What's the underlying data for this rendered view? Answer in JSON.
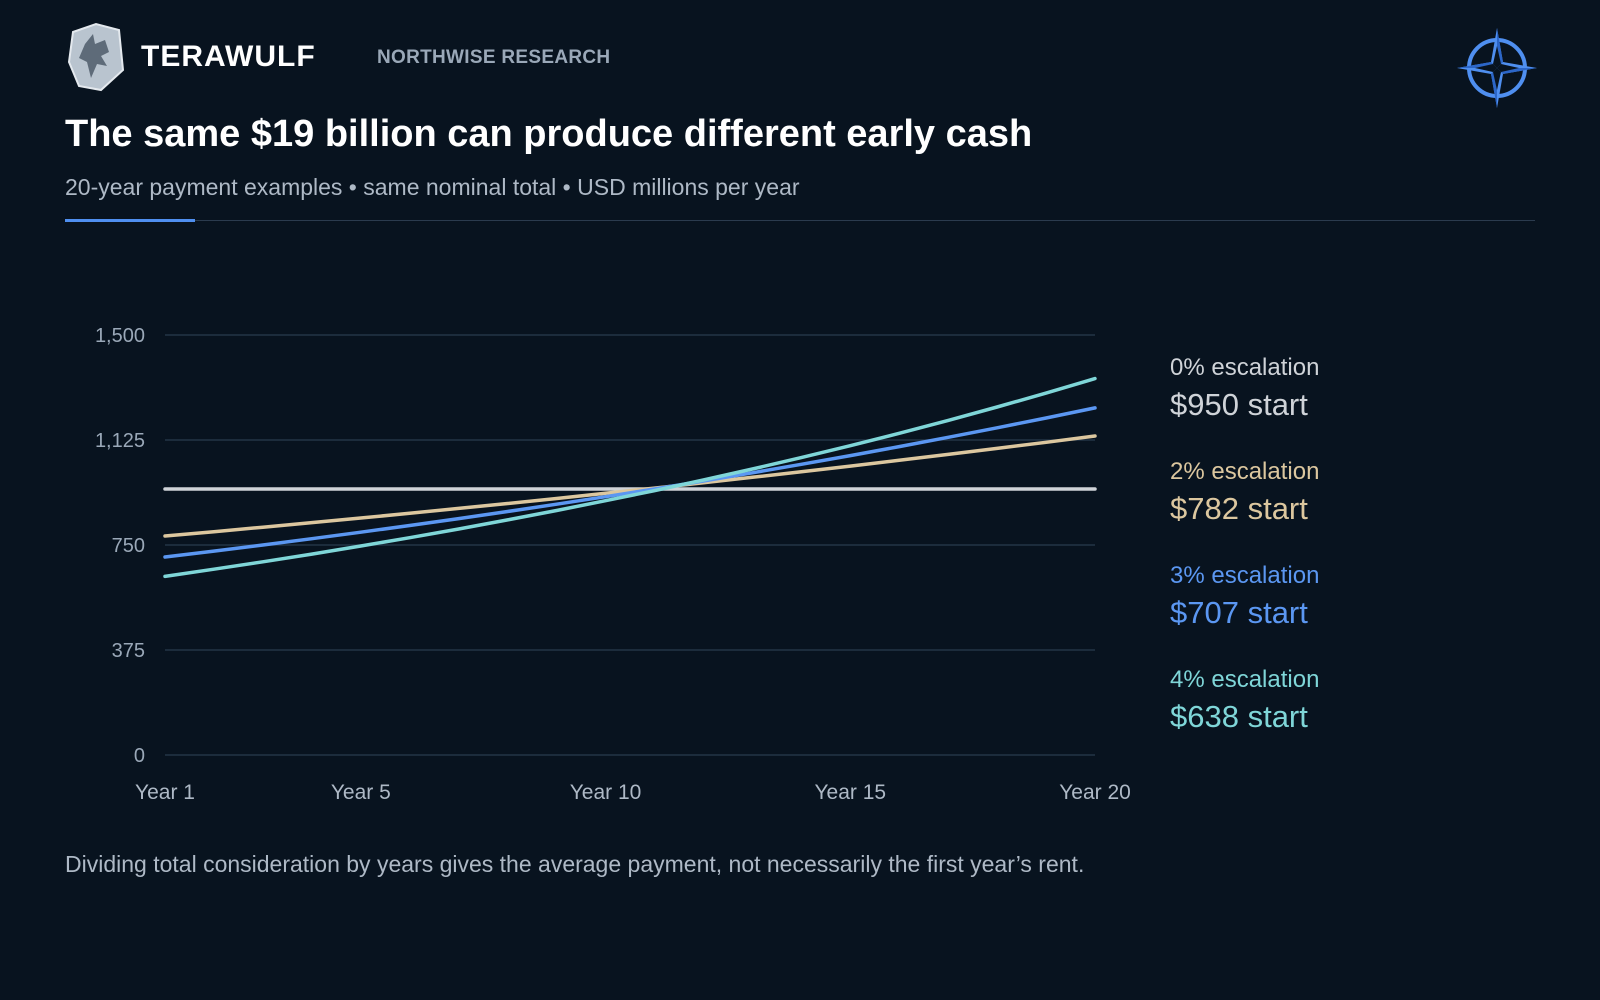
{
  "header": {
    "brand": "TERAWULF",
    "research": "NORTHWISE RESEARCH",
    "logo_icon": "wolf-shield-icon",
    "corner_icon": "compass-rose-icon"
  },
  "title": "The same $19 billion can produce different early cash",
  "subtitle": "20-year payment examples • same nominal total • USD millions per year",
  "footnote": "Dividing total consideration by years gives the average payment, not necessarily the first year’s rent.",
  "colors": {
    "background": "#08131f",
    "accent": "#4f8ff0",
    "grid": "#233447"
  },
  "chart_data": {
    "type": "line",
    "title": "The same $19 billion can produce different early cash",
    "subtitle": "20-year payment examples • same nominal total • USD millions per year",
    "xlabel": "",
    "ylabel": "",
    "x": [
      1,
      20
    ],
    "x_ticks": [
      {
        "value": 1,
        "label": "Year 1"
      },
      {
        "value": 5,
        "label": "Year 5"
      },
      {
        "value": 10,
        "label": "Year 10"
      },
      {
        "value": 15,
        "label": "Year 15"
      },
      {
        "value": 20,
        "label": "Year 20"
      }
    ],
    "y_ticks": [
      {
        "value": 0,
        "label": "0"
      },
      {
        "value": 375,
        "label": "375"
      },
      {
        "value": 750,
        "label": "750"
      },
      {
        "value": 1125,
        "label": "1,125"
      },
      {
        "value": 1500,
        "label": "1,500"
      }
    ],
    "xlim": [
      1,
      20
    ],
    "ylim": [
      0,
      1500
    ],
    "grid": true,
    "legend_placement": "right",
    "series": [
      {
        "escalation": "0% escalation",
        "start_label": "$950 start",
        "start": 950,
        "growth": 0.0,
        "end": 950,
        "color": "#cfd3d8"
      },
      {
        "escalation": "2% escalation",
        "start_label": "$782 start",
        "start": 782,
        "growth": 0.02,
        "end": 1142,
        "color": "#dcc79f"
      },
      {
        "escalation": "3% escalation",
        "start_label": "$707 start",
        "start": 707,
        "growth": 0.03,
        "end": 1239,
        "color": "#5b97f2"
      },
      {
        "escalation": "4% escalation",
        "start_label": "$638 start",
        "start": 638,
        "growth": 0.04,
        "end": 1344,
        "color": "#7fd6d8"
      }
    ]
  }
}
